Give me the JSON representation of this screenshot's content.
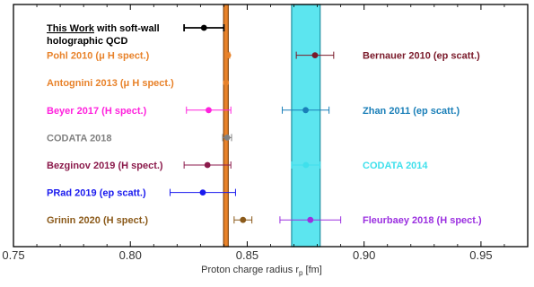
{
  "chart_data": {
    "type": "scatter",
    "xlabel": "Proton charge radius r",
    "xlabel_sub": "p",
    "xlabel_unit": " [fm]",
    "xlim": [
      0.75,
      0.97
    ],
    "x_ticks": [
      "0.75",
      "0.80",
      "0.85",
      "0.90",
      "0.95"
    ],
    "x_tick_values": [
      0.75,
      0.8,
      0.85,
      0.9,
      0.95
    ],
    "bands": [
      {
        "center": 0.8409,
        "halfwidth": 0.001,
        "color": "#e8822a"
      },
      {
        "center": 0.8751,
        "halfwidth": 0.0061,
        "color": "#3fe0ec"
      }
    ],
    "series": [
      {
        "label_main": "This Work",
        "label_rest": " with soft-wall",
        "label_line2": "holographic QCD",
        "color": "#000000",
        "x": 0.8315,
        "xerr_low": 0.0085,
        "xerr_high": 0.0085,
        "row": 0,
        "side": "left"
      },
      {
        "label": "Pohl 2010 (μ H spect.)",
        "color": "#e8822a",
        "x": 0.8418,
        "xerr_low": 0.0007,
        "xerr_high": 0.0007,
        "row": 1,
        "side": "left"
      },
      {
        "label": "Antognini 2013 (μ H spect.)",
        "color": "#e8822a",
        "x": 0.8409,
        "xerr_low": 0.0004,
        "xerr_high": 0.0004,
        "row": 2,
        "side": "left"
      },
      {
        "label": "Beyer 2017 (H spect.)",
        "color": "#ff22dd",
        "x": 0.8335,
        "xerr_low": 0.0095,
        "xerr_high": 0.0095,
        "row": 3,
        "side": "left"
      },
      {
        "label": "CODATA 2018",
        "color": "#808080",
        "x": 0.8414,
        "xerr_low": 0.0019,
        "xerr_high": 0.0019,
        "row": 4,
        "side": "left"
      },
      {
        "label": "Bezginov 2019 (H spect.)",
        "color": "#8b1a4b",
        "x": 0.833,
        "xerr_low": 0.01,
        "xerr_high": 0.01,
        "row": 5,
        "side": "left"
      },
      {
        "label": "PRad 2019 (ep scatt.)",
        "color": "#1a1aee",
        "x": 0.831,
        "xerr_low": 0.014,
        "xerr_high": 0.014,
        "row": 6,
        "side": "left"
      },
      {
        "label": "Grinin 2020 (H spect.)",
        "color": "#8b5a1a",
        "x": 0.8482,
        "xerr_low": 0.0038,
        "xerr_high": 0.0038,
        "row": 7,
        "side": "left"
      },
      {
        "label": "Bernauer 2010 (ep scatt.)",
        "color": "#7a1a2a",
        "x": 0.879,
        "xerr_low": 0.008,
        "xerr_high": 0.008,
        "row": 1,
        "side": "right"
      },
      {
        "label": "Zhan 2011 (ep scatt.)",
        "color": "#1a7fb8",
        "x": 0.875,
        "xerr_low": 0.01,
        "xerr_high": 0.01,
        "row": 3,
        "side": "right"
      },
      {
        "label": "CODATA 2014",
        "color": "#3fe0ec",
        "x": 0.8751,
        "xerr_low": 0.0061,
        "xerr_high": 0.0061,
        "row": 5,
        "side": "right"
      },
      {
        "label": "Fleurbaey 2018 (H spect.)",
        "color": "#9b30e0",
        "x": 0.877,
        "xerr_low": 0.013,
        "xerr_high": 0.013,
        "row": 7,
        "side": "right"
      }
    ]
  }
}
